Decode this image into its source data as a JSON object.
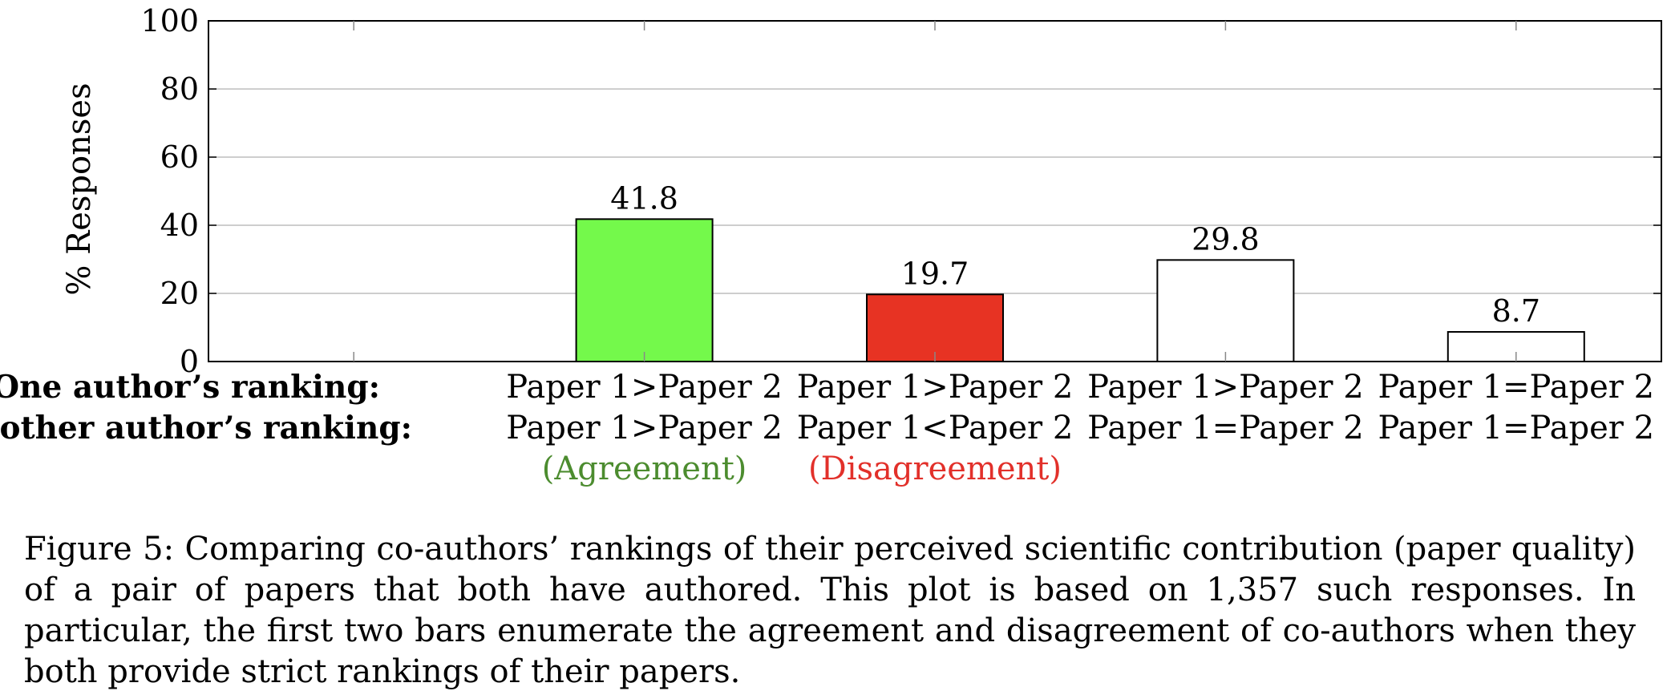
{
  "chart_data": {
    "type": "bar",
    "ylabel": "% Responses",
    "ylim": [
      0,
      100
    ],
    "yticks": [
      0,
      20,
      40,
      60,
      80,
      100
    ],
    "grid": true,
    "row_headers": [
      "One author’s ranking:",
      "Another author’s ranking:"
    ],
    "categories": [
      {
        "first": "",
        "second": "",
        "note": "",
        "note_color": ""
      },
      {
        "first": "Paper 1>Paper 2",
        "second": "Paper 1>Paper 2",
        "note": "(Agreement)",
        "note_color": "#4c8c2f"
      },
      {
        "first": "Paper 1>Paper 2",
        "second": "Paper 1<Paper 2",
        "note": "(Disagreement)",
        "note_color": "#e2302a"
      },
      {
        "first": "Paper 1>Paper 2",
        "second": "Paper 1=Paper 2",
        "note": "",
        "note_color": ""
      },
      {
        "first": "Paper 1=Paper 2",
        "second": "Paper 1=Paper 2",
        "note": "",
        "note_color": ""
      }
    ],
    "values": [
      null,
      41.8,
      19.7,
      29.8,
      8.7
    ],
    "value_labels": [
      "",
      "41.8",
      "19.7",
      "29.8",
      "8.7"
    ],
    "colors": [
      "#ffffff",
      "#74f94b",
      "#e73323",
      "#ffffff",
      "#ffffff"
    ]
  },
  "caption": "Figure 5: Comparing co-authors’ rankings of their perceived scientific contribution (paper quality) of a pair of papers that both have authored. This plot is based on 1,357 such responses. In particular, the first two bars enumerate the agreement and disagreement of co-authors when they both provide strict rankings of their papers."
}
